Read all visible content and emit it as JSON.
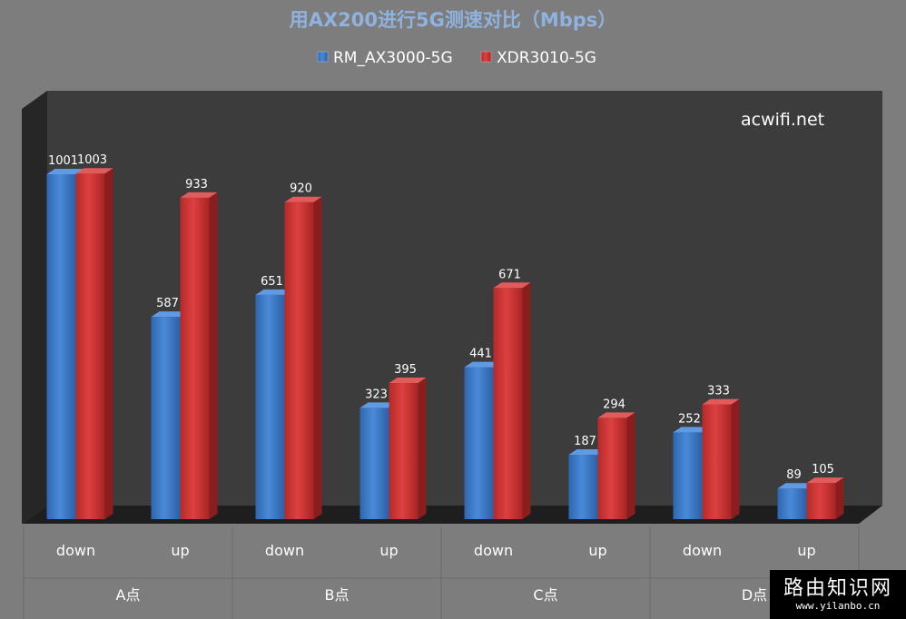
{
  "chart_data": {
    "type": "bar",
    "title": "用AX200进行5G测速对比（Mbps）",
    "categories": [
      "down",
      "up",
      "down",
      "up",
      "down",
      "up",
      "down",
      "up"
    ],
    "groups": [
      "A点",
      "B点",
      "C点",
      "D点"
    ],
    "series": [
      {
        "name": "RM_AX3000-5G",
        "values": [
          1001,
          587,
          651,
          323,
          441,
          187,
          252,
          89
        ],
        "color": "#3a78c8"
      },
      {
        "name": "XDR3010-5G",
        "values": [
          1003,
          933,
          920,
          395,
          671,
          294,
          333,
          105
        ],
        "color": "#cc3333"
      }
    ],
    "ylim": [
      0,
      1100
    ],
    "grid": false,
    "legend_position": "top-center",
    "watermark": "acwifi.net"
  },
  "stamp": {
    "title": "路由知识网",
    "url": "www.yilanbo.cn"
  }
}
